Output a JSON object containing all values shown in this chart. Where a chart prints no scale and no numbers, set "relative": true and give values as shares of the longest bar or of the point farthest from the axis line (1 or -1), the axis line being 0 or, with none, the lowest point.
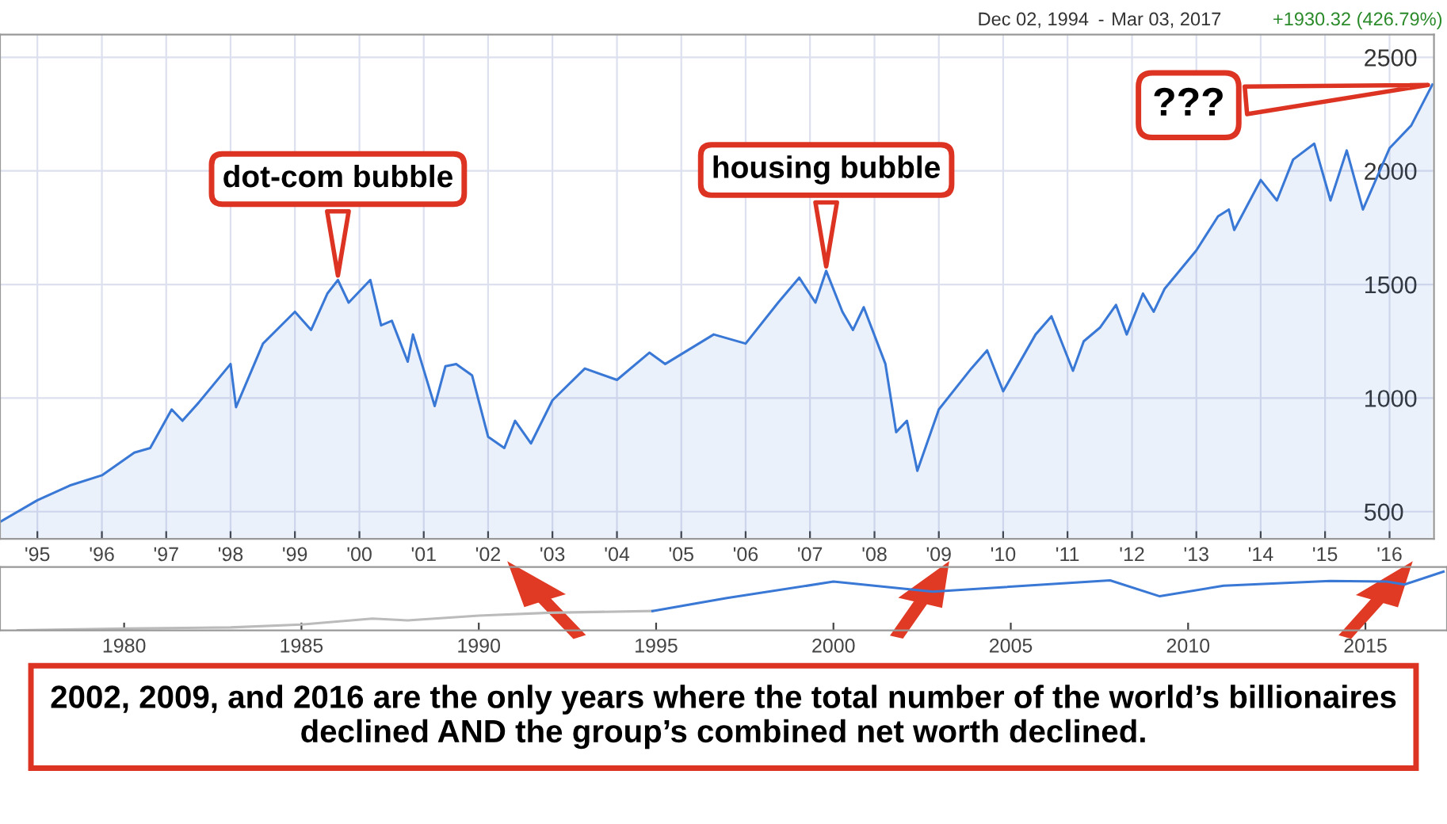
{
  "chart_data": [
    {
      "type": "area",
      "color": "#3a78d6",
      "x": [
        "1994-12",
        "1995-07",
        "1996-01",
        "1996-07",
        "1997-01",
        "1997-04",
        "1997-08",
        "1997-10",
        "1998-01",
        "1998-07",
        "1998-08",
        "1999-01",
        "1999-07",
        "1999-10",
        "2000-01",
        "2000-03",
        "2000-05",
        "2000-09",
        "2000-11",
        "2001-01",
        "2001-04",
        "2001-05",
        "2001-09",
        "2001-11",
        "2002-01",
        "2002-04",
        "2002-07",
        "2002-10",
        "2002-12",
        "2003-03",
        "2003-07",
        "2004-01",
        "2004-07",
        "2005-01",
        "2005-04",
        "2006-01",
        "2006-07",
        "2007-01",
        "2007-05",
        "2007-08",
        "2007-10",
        "2008-01",
        "2008-03",
        "2008-05",
        "2008-09",
        "2008-11",
        "2009-01",
        "2009-03",
        "2009-07",
        "2010-01",
        "2010-04",
        "2010-07",
        "2011-01",
        "2011-04",
        "2011-08",
        "2011-10",
        "2012-01",
        "2012-04",
        "2012-06",
        "2012-09",
        "2012-11",
        "2013-01",
        "2013-07",
        "2013-11",
        "2014-01",
        "2014-02",
        "2014-07",
        "2014-10",
        "2015-01",
        "2015-05",
        "2015-08",
        "2015-11",
        "2016-02",
        "2016-07",
        "2016-11",
        "2017-03"
      ],
      "values": [
        455,
        550,
        615,
        660,
        760,
        780,
        950,
        900,
        980,
        1150,
        960,
        1240,
        1380,
        1300,
        1460,
        1520,
        1420,
        1520,
        1320,
        1340,
        1160,
        1280,
        965,
        1140,
        1150,
        1100,
        830,
        780,
        900,
        800,
        990,
        1130,
        1080,
        1200,
        1150,
        1280,
        1240,
        1420,
        1530,
        1420,
        1560,
        1380,
        1300,
        1400,
        1150,
        850,
        900,
        680,
        950,
        1130,
        1210,
        1030,
        1280,
        1360,
        1120,
        1250,
        1310,
        1410,
        1280,
        1460,
        1380,
        1480,
        1650,
        1800,
        1830,
        1740,
        1960,
        1870,
        2050,
        2120,
        1870,
        2090,
        1830,
        2100,
        2200,
        2380
      ],
      "xlim": [
        "1994-12-01",
        "2017-03-10"
      ],
      "ylim": [
        380,
        2600
      ],
      "xticks": [
        {
          "value": "1995-07",
          "label": "'95"
        },
        {
          "value": "1996-07",
          "label": "'96"
        },
        {
          "value": "1997-07",
          "label": "'97"
        },
        {
          "value": "1998-07",
          "label": "'98"
        },
        {
          "value": "1999-07",
          "label": "'99"
        },
        {
          "value": "2000-07",
          "label": "'00"
        },
        {
          "value": "2001-07",
          "label": "'01"
        },
        {
          "value": "2002-07",
          "label": "'02"
        },
        {
          "value": "2003-07",
          "label": "'03"
        },
        {
          "value": "2004-07",
          "label": "'04"
        },
        {
          "value": "2005-07",
          "label": "'05"
        },
        {
          "value": "2006-07",
          "label": "'06"
        },
        {
          "value": "2007-07",
          "label": "'07"
        },
        {
          "value": "2008-07",
          "label": "'08"
        },
        {
          "value": "2009-07",
          "label": "'09"
        },
        {
          "value": "2010-07",
          "label": "'10"
        },
        {
          "value": "2011-07",
          "label": "'11"
        },
        {
          "value": "2012-07",
          "label": "'12"
        },
        {
          "value": "2013-07",
          "label": "'13"
        },
        {
          "value": "2014-07",
          "label": "'14"
        },
        {
          "value": "2015-07",
          "label": "'15"
        },
        {
          "value": "2016-07",
          "label": "'16"
        }
      ],
      "yticks": [
        500,
        1000,
        1500,
        2000,
        2500
      ],
      "grid": true,
      "annotations": [
        "Dec 02, 1994",
        "-",
        "Mar 03, 2017",
        "+1930.32 (426.79%)",
        {
          "text": "dot-com bubble",
          "x": "2000-03",
          "y": 1520
        },
        {
          "text": "housing bubble",
          "x": "2007-10",
          "y": 1560
        },
        {
          "text": "???",
          "x": "2017-03",
          "y": 2380
        },
        "2002, 2009, and 2016 are the only years where the total number of the world’s billionaires declined AND the group’s combined net worth declined."
      ]
    },
    {
      "type": "line",
      "relative": true,
      "tick_labels": "x",
      "xlim": [
        1976.5,
        2017.3
      ],
      "xticks": [
        1980,
        1985,
        1990,
        1995,
        2000,
        2005,
        2010,
        2015
      ],
      "series": [
        {
          "color": "#bbbbbb",
          "x": [
            1977,
            1980,
            1983,
            1985,
            1987,
            1988,
            1990,
            1992,
            1994.9
          ],
          "values": [
            0,
            0.03,
            0.05,
            0.1,
            0.2,
            0.17,
            0.25,
            0.3,
            0.33
          ]
        },
        {
          "color": "#3a78d6",
          "x": [
            1994.9,
            1997,
            2000,
            2002.8,
            2007.8,
            2009.2,
            2011,
            2014,
            2015.6,
            2016.1,
            2017.2
          ],
          "values": [
            0.33,
            0.55,
            0.83,
            0.66,
            0.85,
            0.58,
            0.76,
            0.84,
            0.83,
            0.78,
            1
          ]
        }
      ]
    }
  ]
}
